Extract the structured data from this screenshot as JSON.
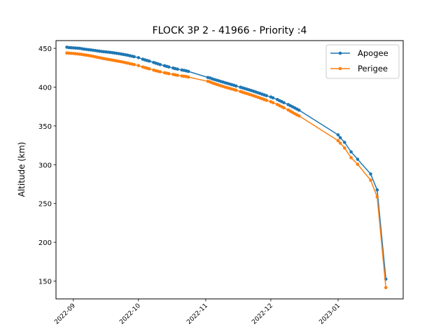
{
  "chart_data": {
    "type": "line",
    "title": "FLOCK 3P 2 - 41966 - Priority :4",
    "xlabel": "",
    "ylabel": "Altitude (km)",
    "ylim": [
      127,
      460
    ],
    "yticks": [
      150,
      200,
      250,
      300,
      350,
      400,
      450
    ],
    "xlim": [
      "2022-08-24",
      "2023-01-31"
    ],
    "xticks": [
      "2022-09",
      "2022-10",
      "2022-11",
      "2022-12",
      "2023-01"
    ],
    "grid": false,
    "legend": "top-right",
    "series": [
      {
        "name": "Apogee",
        "color": "#1f77b4",
        "points": [
          [
            "2022-08-29",
            451.5
          ],
          [
            "2022-08-30",
            451.0
          ],
          [
            "2022-08-31",
            450.8
          ],
          [
            "2022-09-01",
            450.6
          ],
          [
            "2022-09-02",
            450.4
          ],
          [
            "2022-09-03",
            450.2
          ],
          [
            "2022-09-04",
            450.0
          ],
          [
            "2022-09-05",
            449.5
          ],
          [
            "2022-09-06",
            449.0
          ],
          [
            "2022-09-07",
            448.7
          ],
          [
            "2022-09-08",
            448.3
          ],
          [
            "2022-09-09",
            448.0
          ],
          [
            "2022-09-10",
            447.6
          ],
          [
            "2022-09-11",
            447.2
          ],
          [
            "2022-09-12",
            446.8
          ],
          [
            "2022-09-13",
            446.4
          ],
          [
            "2022-09-14",
            446.0
          ],
          [
            "2022-09-15",
            445.7
          ],
          [
            "2022-09-16",
            445.4
          ],
          [
            "2022-09-17",
            445.1
          ],
          [
            "2022-09-18",
            444.8
          ],
          [
            "2022-09-19",
            444.4
          ],
          [
            "2022-09-20",
            444.0
          ],
          [
            "2022-09-21",
            443.6
          ],
          [
            "2022-09-22",
            443.2
          ],
          [
            "2022-09-23",
            442.7
          ],
          [
            "2022-09-24",
            442.2
          ],
          [
            "2022-09-25",
            441.7
          ],
          [
            "2022-09-26",
            441.2
          ],
          [
            "2022-09-27",
            440.5
          ],
          [
            "2022-09-28",
            439.9
          ],
          [
            "2022-09-29",
            439.3
          ],
          [
            "2022-10-01",
            438.0
          ],
          [
            "2022-10-03",
            436.0
          ],
          [
            "2022-10-04",
            435.1
          ],
          [
            "2022-10-05",
            434.3
          ],
          [
            "2022-10-06",
            433.6
          ],
          [
            "2022-10-08",
            431.8
          ],
          [
            "2022-10-09",
            430.9
          ],
          [
            "2022-10-10",
            430.0
          ],
          [
            "2022-10-11",
            429.1
          ],
          [
            "2022-10-13",
            427.6
          ],
          [
            "2022-10-14",
            426.8
          ],
          [
            "2022-10-15",
            426.0
          ],
          [
            "2022-10-17",
            424.6
          ],
          [
            "2022-10-18",
            423.8
          ],
          [
            "2022-10-19",
            423.2
          ],
          [
            "2022-10-21",
            422.1
          ],
          [
            "2022-10-22",
            421.6
          ],
          [
            "2022-10-23",
            421.0
          ],
          [
            "2022-10-24",
            420.3
          ],
          [
            "2022-11-02",
            412.5
          ],
          [
            "2022-11-03",
            411.8
          ],
          [
            "2022-11-04",
            410.7
          ],
          [
            "2022-11-05",
            409.8
          ],
          [
            "2022-11-06",
            409.0
          ],
          [
            "2022-11-07",
            408.2
          ],
          [
            "2022-11-08",
            407.3
          ],
          [
            "2022-11-09",
            406.5
          ],
          [
            "2022-11-10",
            405.6
          ],
          [
            "2022-11-11",
            404.8
          ],
          [
            "2022-11-12",
            404.0
          ],
          [
            "2022-11-13",
            403.2
          ],
          [
            "2022-11-14",
            402.4
          ],
          [
            "2022-11-15",
            401.5
          ],
          [
            "2022-11-17",
            399.9
          ],
          [
            "2022-11-18",
            399.0
          ],
          [
            "2022-11-19",
            398.2
          ],
          [
            "2022-11-20",
            397.3
          ],
          [
            "2022-11-21",
            396.5
          ],
          [
            "2022-11-22",
            395.6
          ],
          [
            "2022-11-23",
            394.7
          ],
          [
            "2022-11-24",
            393.8
          ],
          [
            "2022-11-25",
            392.8
          ],
          [
            "2022-11-26",
            391.9
          ],
          [
            "2022-11-27",
            390.9
          ],
          [
            "2022-11-28",
            390.0
          ],
          [
            "2022-11-29",
            389.0
          ],
          [
            "2022-12-01",
            387.3
          ],
          [
            "2022-12-02",
            386.2
          ],
          [
            "2022-12-04",
            384.0
          ],
          [
            "2022-12-05",
            382.6
          ],
          [
            "2022-12-06",
            381.3
          ],
          [
            "2022-12-07",
            380.0
          ],
          [
            "2022-12-09",
            377.5
          ],
          [
            "2022-12-10",
            376.1
          ],
          [
            "2022-12-11",
            374.7
          ],
          [
            "2022-12-12",
            373.2
          ],
          [
            "2022-12-13",
            371.8
          ],
          [
            "2022-12-14",
            370.3
          ],
          [
            "2023-01-01",
            338.5
          ],
          [
            "2023-01-02",
            334.8
          ],
          [
            "2023-01-04",
            328.8
          ],
          [
            "2023-01-07",
            316.5
          ],
          [
            "2023-01-10",
            307.0
          ],
          [
            "2023-01-16",
            288.0
          ],
          [
            "2023-01-19",
            267.5
          ],
          [
            "2023-01-23",
            152.5
          ]
        ]
      },
      {
        "name": "Perigee",
        "color": "#ff7f0e",
        "points": [
          [
            "2022-08-29",
            444.0
          ],
          [
            "2022-08-30",
            443.8
          ],
          [
            "2022-08-31",
            443.6
          ],
          [
            "2022-09-01",
            443.4
          ],
          [
            "2022-09-02",
            443.1
          ],
          [
            "2022-09-03",
            442.8
          ],
          [
            "2022-09-04",
            442.5
          ],
          [
            "2022-09-05",
            442.1
          ],
          [
            "2022-09-06",
            441.6
          ],
          [
            "2022-09-07",
            441.2
          ],
          [
            "2022-09-08",
            440.8
          ],
          [
            "2022-09-09",
            440.3
          ],
          [
            "2022-09-10",
            439.8
          ],
          [
            "2022-09-11",
            439.2
          ],
          [
            "2022-09-12",
            438.6
          ],
          [
            "2022-09-13",
            438.0
          ],
          [
            "2022-09-14",
            437.4
          ],
          [
            "2022-09-15",
            436.8
          ],
          [
            "2022-09-16",
            436.3
          ],
          [
            "2022-09-17",
            435.8
          ],
          [
            "2022-09-18",
            435.3
          ],
          [
            "2022-09-19",
            434.8
          ],
          [
            "2022-09-20",
            434.3
          ],
          [
            "2022-09-21",
            433.8
          ],
          [
            "2022-09-22",
            433.3
          ],
          [
            "2022-09-23",
            432.8
          ],
          [
            "2022-09-24",
            432.2
          ],
          [
            "2022-09-25",
            431.6
          ],
          [
            "2022-09-26",
            431.0
          ],
          [
            "2022-09-27",
            430.3
          ],
          [
            "2022-09-28",
            429.7
          ],
          [
            "2022-09-29",
            429.1
          ],
          [
            "2022-10-01",
            427.8
          ],
          [
            "2022-10-03",
            426.0
          ],
          [
            "2022-10-04",
            425.2
          ],
          [
            "2022-10-05",
            424.4
          ],
          [
            "2022-10-06",
            423.6
          ],
          [
            "2022-10-08",
            422.0
          ],
          [
            "2022-10-09",
            421.2
          ],
          [
            "2022-10-10",
            420.5
          ],
          [
            "2022-10-11",
            419.8
          ],
          [
            "2022-10-13",
            418.6
          ],
          [
            "2022-10-14",
            418.0
          ],
          [
            "2022-10-15",
            417.4
          ],
          [
            "2022-10-17",
            416.4
          ],
          [
            "2022-10-18",
            415.8
          ],
          [
            "2022-10-19",
            415.3
          ],
          [
            "2022-10-21",
            414.4
          ],
          [
            "2022-10-22",
            414.0
          ],
          [
            "2022-10-23",
            413.6
          ],
          [
            "2022-10-24",
            413.0
          ],
          [
            "2022-11-02",
            407.5
          ],
          [
            "2022-11-03",
            406.6
          ],
          [
            "2022-11-04",
            405.5
          ],
          [
            "2022-11-05",
            404.5
          ],
          [
            "2022-11-06",
            403.6
          ],
          [
            "2022-11-07",
            402.7
          ],
          [
            "2022-11-08",
            401.8
          ],
          [
            "2022-11-09",
            400.9
          ],
          [
            "2022-11-10",
            400.0
          ],
          [
            "2022-11-11",
            399.2
          ],
          [
            "2022-11-12",
            398.4
          ],
          [
            "2022-11-13",
            397.6
          ],
          [
            "2022-11-14",
            396.8
          ],
          [
            "2022-11-15",
            396.0
          ],
          [
            "2022-11-17",
            394.4
          ],
          [
            "2022-11-18",
            393.5
          ],
          [
            "2022-11-19",
            392.6
          ],
          [
            "2022-11-20",
            391.7
          ],
          [
            "2022-11-21",
            390.8
          ],
          [
            "2022-11-22",
            389.9
          ],
          [
            "2022-11-23",
            389.0
          ],
          [
            "2022-11-24",
            388.0
          ],
          [
            "2022-11-25",
            387.0
          ],
          [
            "2022-11-26",
            386.0
          ],
          [
            "2022-11-27",
            385.0
          ],
          [
            "2022-11-28",
            384.0
          ],
          [
            "2022-11-29",
            383.0
          ],
          [
            "2022-12-01",
            381.2
          ],
          [
            "2022-12-02",
            380.0
          ],
          [
            "2022-12-04",
            377.6
          ],
          [
            "2022-12-05",
            376.2
          ],
          [
            "2022-12-06",
            374.8
          ],
          [
            "2022-12-07",
            373.4
          ],
          [
            "2022-12-09",
            370.6
          ],
          [
            "2022-12-10",
            369.0
          ],
          [
            "2022-12-11",
            367.4
          ],
          [
            "2022-12-12",
            365.8
          ],
          [
            "2022-12-13",
            364.4
          ],
          [
            "2022-12-14",
            363.0
          ],
          [
            "2023-01-01",
            331.0
          ],
          [
            "2023-01-02",
            327.8
          ],
          [
            "2023-01-04",
            321.5
          ],
          [
            "2023-01-07",
            309.0
          ],
          [
            "2023-01-10",
            300.5
          ],
          [
            "2023-01-16",
            280.0
          ],
          [
            "2023-01-19",
            258.5
          ],
          [
            "2023-01-23",
            141.5
          ]
        ]
      }
    ]
  }
}
